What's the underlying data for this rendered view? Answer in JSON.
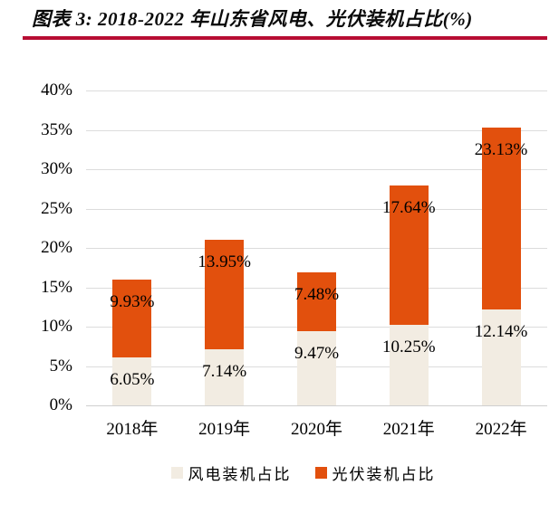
{
  "title": "图表 3: 2018-2022 年山东省风电、光伏装机占比(%)",
  "colors": {
    "wind": "#F2ECE2",
    "solar": "#E2500D",
    "accent_rule": "#B70D33",
    "gridline": "#DCDCDC",
    "text": "#000000"
  },
  "chart_data": {
    "type": "bar",
    "stacked": true,
    "title": "图表 3: 2018-2022 年山东省风电、光伏装机占比(%)",
    "categories": [
      "2018年",
      "2019年",
      "2020年",
      "2021年",
      "2022年"
    ],
    "series": [
      {
        "name": "风电装机占比",
        "color": "#F2ECE2",
        "values": [
          6.05,
          7.14,
          9.47,
          10.25,
          12.14
        ],
        "labels": [
          "6.05%",
          "7.14%",
          "9.47%",
          "10.25%",
          "12.14%"
        ]
      },
      {
        "name": "光伏装机占比",
        "color": "#E2500D",
        "values": [
          9.93,
          13.95,
          7.48,
          17.64,
          23.13
        ],
        "labels": [
          "9.93%",
          "13.95%",
          "7.48%",
          "17.64%",
          "23.13%"
        ]
      }
    ],
    "xlabel": "",
    "ylabel": "",
    "ylim": [
      0,
      40
    ],
    "y_tick_step": 5,
    "y_tick_labels": [
      "0%",
      "5%",
      "10%",
      "15%",
      "20%",
      "25%",
      "30%",
      "35%",
      "40%"
    ],
    "grid": true,
    "legend_position": "bottom"
  },
  "legend": {
    "items": [
      {
        "label": "风电装机占比",
        "color": "#F2ECE2"
      },
      {
        "label": "光伏装机占比",
        "color": "#E2500D"
      }
    ]
  }
}
